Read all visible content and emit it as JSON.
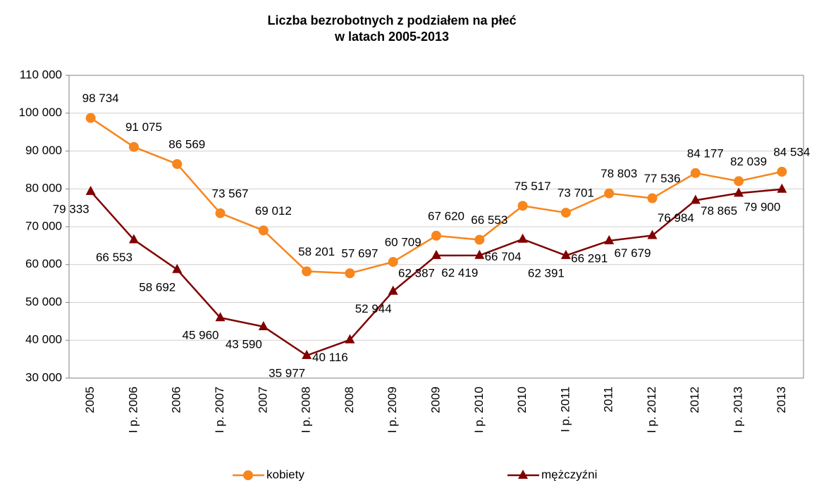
{
  "chart_data": {
    "type": "line",
    "title": [
      "Liczba bezrobotnych z podziałem na płeć",
      "w latach 2005-2013"
    ],
    "categories": [
      "2005",
      "I p. 2006",
      "2006",
      "I p. 2007",
      "2007",
      "I p. 2008",
      "2008",
      "I p. 2009",
      "2009",
      "I p. 2010",
      "2010",
      "I p. 2011",
      "2011",
      "I p. 2012",
      "2012",
      "I p. 2013",
      "2013"
    ],
    "series": [
      {
        "name": "kobiety",
        "color": "#f7861d",
        "marker": "circle",
        "values": [
          98734,
          91075,
          86569,
          73567,
          69012,
          58201,
          57697,
          60709,
          67620,
          66553,
          75517,
          73701,
          78803,
          77536,
          84177,
          82039,
          84534
        ],
        "value_labels": [
          "98 734",
          "91 075",
          "86 569",
          "73 567",
          "69 012",
          "58 201",
          "57 697",
          "60 709",
          "67 620",
          "66 553",
          "75 517",
          "73 701",
          "78 803",
          "77 536",
          "84 177",
          "82 039",
          "84 534"
        ]
      },
      {
        "name": "mężczyźni",
        "color": "#7f0000",
        "marker": "triangle",
        "values": [
          79333,
          66553,
          58692,
          45960,
          43590,
          35977,
          40116,
          52944,
          62387,
          62419,
          66704,
          62391,
          66291,
          67679,
          76984,
          78865,
          79900
        ],
        "value_labels": [
          "79 333",
          "66 553",
          "58 692",
          "45 960",
          "43 590",
          "35 977",
          "40 116",
          "52 944",
          "62 387",
          "62 419",
          "66 704",
          "62 391",
          "66 291",
          "67 679",
          "76 984",
          "78 865",
          "79 900"
        ]
      }
    ],
    "ylim": [
      30000,
      110000
    ],
    "yticks": [
      {
        "value": 30000,
        "label": "30 000"
      },
      {
        "value": 40000,
        "label": "40 000"
      },
      {
        "value": 50000,
        "label": "50 000"
      },
      {
        "value": 60000,
        "label": "60 000"
      },
      {
        "value": 70000,
        "label": "70 000"
      },
      {
        "value": 80000,
        "label": "80 000"
      },
      {
        "value": 90000,
        "label": "90 000"
      },
      {
        "value": 100000,
        "label": "100 000"
      },
      {
        "value": 110000,
        "label": "110 000"
      }
    ],
    "grid": true,
    "legend": "bottom"
  }
}
